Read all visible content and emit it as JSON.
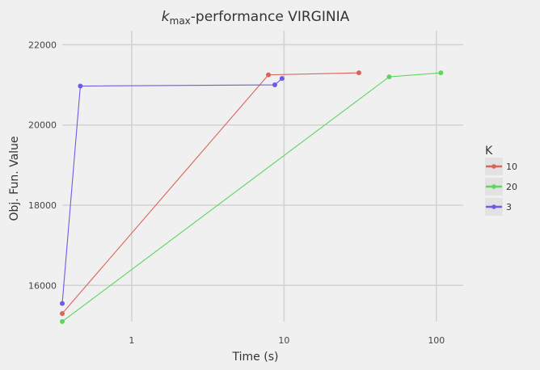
{
  "chart_data": {
    "type": "line",
    "title_main": "k",
    "title_sub": "max",
    "title_rest": "-performance VIRGINIA",
    "xlabel": "Time (s)",
    "ylabel": "Obj. Fun. Value",
    "x_scale": "log10",
    "xlim": [
      0.35,
      150
    ],
    "ylim": [
      15100,
      22350
    ],
    "x_ticks": [
      1,
      10,
      100
    ],
    "x_tick_labels": [
      "1",
      "10",
      "100"
    ],
    "y_ticks": [
      16000,
      18000,
      20000,
      22000
    ],
    "y_tick_labels": [
      "16000",
      "18000",
      "20000",
      "22000"
    ],
    "grid": true,
    "legend_title": "K",
    "legend_position": "right",
    "series": [
      {
        "name": "10",
        "color": "#d9645a",
        "points": [
          [
            0.35,
            15300
          ],
          [
            7.9,
            21250
          ],
          [
            31,
            21300
          ]
        ]
      },
      {
        "name": "20",
        "color": "#5cd65c",
        "points": [
          [
            0.35,
            15100
          ],
          [
            49,
            21200
          ],
          [
            107,
            21300
          ]
        ]
      },
      {
        "name": "3",
        "color": "#6a5ce6",
        "points": [
          [
            0.35,
            15550
          ],
          [
            0.46,
            20970
          ],
          [
            8.7,
            21000
          ],
          [
            9.7,
            21160
          ]
        ]
      }
    ]
  }
}
